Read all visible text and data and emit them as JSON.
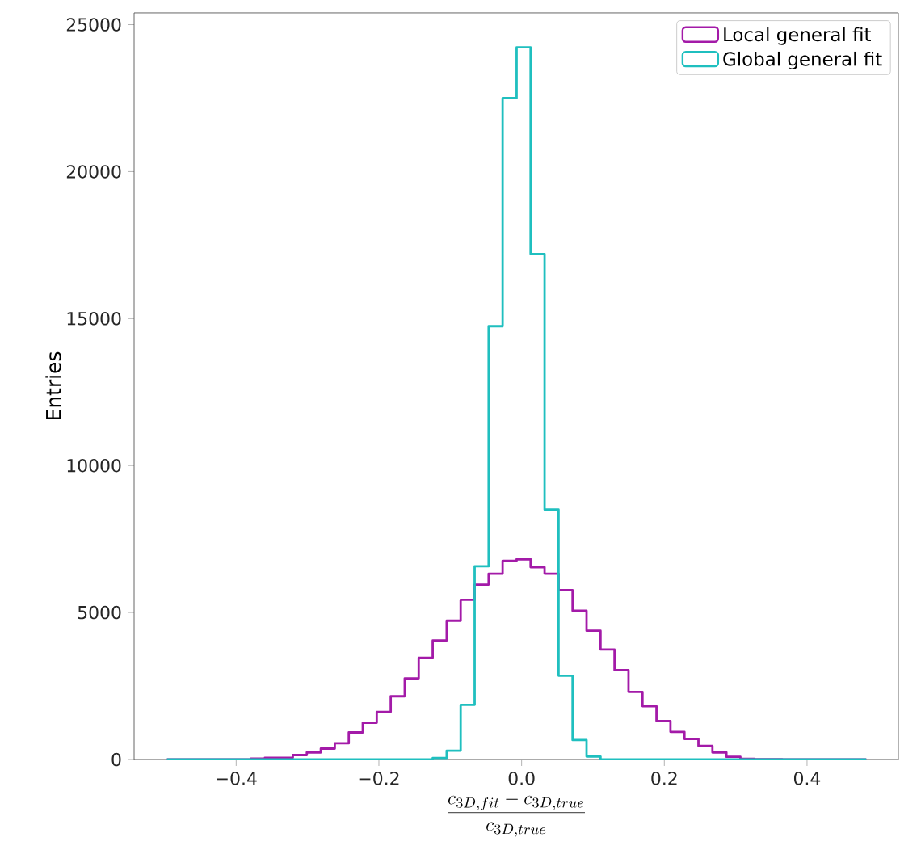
{
  "chart_data": {
    "type": "histogram",
    "xlabel": "\\frac{c_{3D,fit}-c_{3D,true}}{c_{3D,true}}",
    "ylabel": "Entries",
    "bins": [
      -0.497,
      -0.4774,
      -0.4578,
      -0.4382,
      -0.4186,
      -0.399,
      -0.3794,
      -0.3598,
      -0.3402,
      -0.3206,
      -0.301,
      -0.2814,
      -0.2618,
      -0.2422,
      -0.2226,
      -0.203,
      -0.1834,
      -0.1638,
      -0.1442,
      -0.1246,
      -0.105,
      -0.0854,
      -0.0658,
      -0.0462,
      -0.0266,
      -0.007,
      0.0126,
      0.0322,
      0.0518,
      0.0714,
      0.091,
      0.1106,
      0.1302,
      0.1498,
      0.1694,
      0.189,
      0.2086,
      0.2282,
      0.2478,
      0.2674,
      0.287,
      0.3066,
      0.3262,
      0.3458,
      0.3654,
      0.385,
      0.4046,
      0.4242,
      0.4438,
      0.4634,
      0.483
    ],
    "series": [
      {
        "name": "Local general fit",
        "color": "#a31aa8",
        "values": [
          0,
          0,
          0,
          0,
          0,
          0,
          30,
          60,
          60,
          150,
          240,
          370,
          550,
          920,
          1250,
          1620,
          2150,
          2760,
          3460,
          4050,
          4720,
          5430,
          5950,
          6320,
          6760,
          6810,
          6540,
          6320,
          5760,
          5060,
          4380,
          3740,
          3040,
          2300,
          1810,
          1310,
          940,
          700,
          460,
          240,
          90,
          20,
          10,
          10,
          0,
          0,
          0,
          0,
          0,
          0
        ]
      },
      {
        "name": "Global general fit",
        "color": "#1fbfbf",
        "values": [
          0,
          0,
          0,
          0,
          0,
          0,
          0,
          0,
          0,
          0,
          0,
          0,
          0,
          0,
          0,
          0,
          0,
          0,
          0,
          50,
          300,
          1860,
          6570,
          14740,
          22500,
          24225,
          17200,
          8500,
          2850,
          660,
          100,
          0,
          0,
          0,
          0,
          0,
          0,
          0,
          0,
          0,
          0,
          0,
          0,
          0,
          0,
          0,
          0,
          0,
          0,
          0
        ]
      }
    ],
    "xlim": [
      -0.543,
      0.528
    ],
    "ylim": [
      0,
      25400
    ],
    "xticks": [
      {
        "value": -0.4,
        "label": "−0.4"
      },
      {
        "value": -0.2,
        "label": "−0.2"
      },
      {
        "value": 0,
        "label": "0.0"
      },
      {
        "value": 0.2,
        "label": "0.2"
      },
      {
        "value": 0.4,
        "label": "0.4"
      }
    ],
    "yticks": [
      0,
      5000,
      10000,
      15000,
      20000,
      25000
    ],
    "legend": "top right",
    "grid": false
  }
}
